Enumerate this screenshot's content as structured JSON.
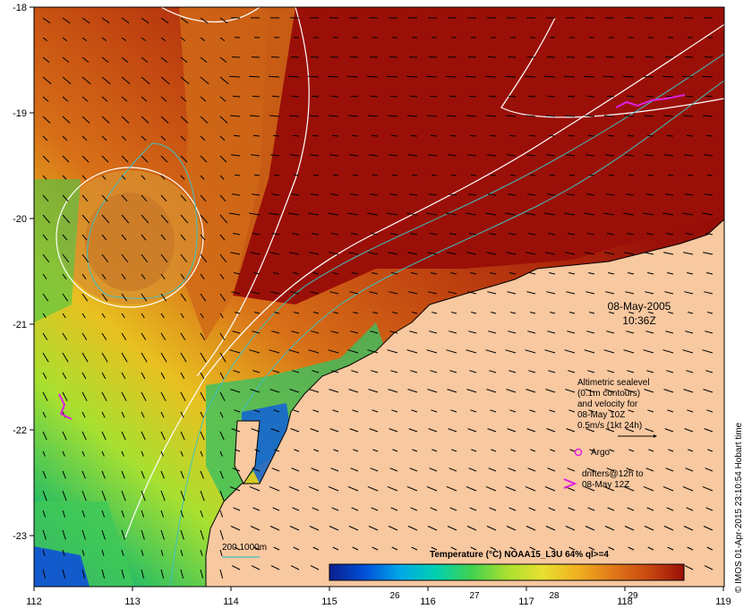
{
  "map": {
    "lon_ticks": [
      "112",
      "113",
      "114",
      "115",
      "116",
      "117",
      "118",
      "119"
    ],
    "lat_ticks": [
      "-18",
      "-19",
      "-20",
      "-21",
      "-22",
      "-23"
    ],
    "date": "08-May-2005",
    "time": "10:36Z",
    "legend": {
      "line1": "Altimetric sealevel",
      "line2": "(0.1m contours)",
      "line3": "and velocity for",
      "line4": "08-May 10Z",
      "line5": "0.5m/s (1kt 24h)",
      "argo": "Argo",
      "drifters1": "drifters@12h to",
      "drifters2": "08-May 12Z"
    },
    "depth_contour_label": "200  1000m",
    "colorbar": {
      "title": "Temperature (°C) NOAA15_L3U 64% ql>=4",
      "tick_labels": [
        "26",
        "27",
        "28",
        "29"
      ],
      "colors": [
        "#0b1f8f",
        "#0050d8",
        "#00a8e8",
        "#00d0b0",
        "#40d050",
        "#a8e030",
        "#e8e030",
        "#f0b020",
        "#e07818",
        "#c84810",
        "#9a1008"
      ]
    },
    "credit": "© IMOS 01-Apr-2015 23:10:54 Hobart time",
    "colors": {
      "land": "#f8c8a0",
      "hot": "#9a1008",
      "warm_orange": "#d86a18",
      "yellow": "#e8d030",
      "green": "#48c848",
      "cyan": "#00c0d0",
      "blue": "#1050d8",
      "argo_magenta": "#e020e0",
      "isobath_cyan": "#40c0c0"
    }
  }
}
